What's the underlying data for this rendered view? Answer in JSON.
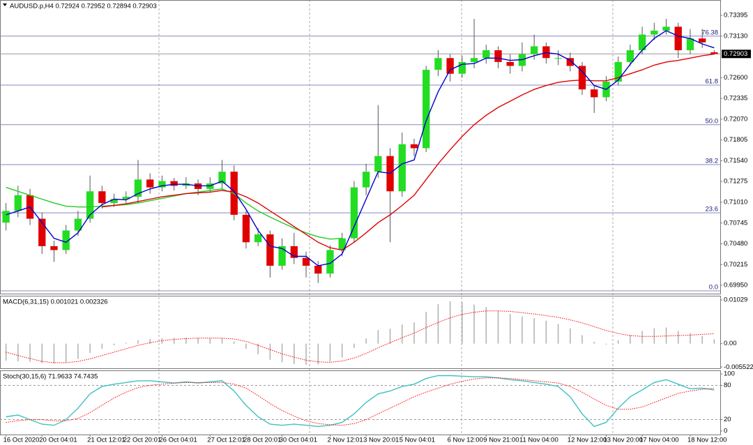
{
  "chart_data": [
    {
      "type": "candlestick",
      "title": "AUDUSD.p,H4  0.72924 0.72952 0.72894 0.72903",
      "categories": [
        "16 Oct 2020",
        null,
        null,
        "20 Oct 04:01",
        null,
        null,
        null,
        "21 Oct 12:01",
        null,
        null,
        "22 Oct 20:01",
        null,
        null,
        "26 Oct 04:01",
        null,
        null,
        null,
        "27 Oct 12:01",
        null,
        null,
        "28 Oct 20:01",
        null,
        null,
        "30 Oct 04:01",
        null,
        null,
        null,
        "2 Nov 12:01",
        null,
        null,
        "3 Nov 20:01",
        null,
        null,
        "5 Nov 04:01",
        null,
        null,
        null,
        "6 Nov 12:00",
        null,
        null,
        "9 Nov 21:00",
        null,
        null,
        "11 Nov 04:00",
        null,
        null,
        null,
        "12 Nov 12:00",
        null,
        null,
        "13 Nov 20:00",
        null,
        null,
        "17 Nov 04:00",
        null,
        null,
        null,
        "18 Nov 12:00",
        null,
        null
      ],
      "open": [
        0.7075,
        0.709,
        0.711,
        0.708,
        0.7045,
        0.704,
        0.7065,
        0.708,
        0.7115,
        0.71,
        0.7105,
        0.7108,
        0.713,
        0.712,
        0.7128,
        0.7122,
        0.7125,
        0.7118,
        0.7125,
        0.714,
        0.7085,
        0.705,
        0.706,
        0.702,
        0.7045,
        0.703,
        0.702,
        0.701,
        0.704,
        0.7055,
        0.712,
        0.714,
        0.716,
        0.7115,
        0.7175,
        0.717,
        0.727,
        0.7285,
        0.7265,
        0.728,
        0.7285,
        0.7295,
        0.728,
        0.7275,
        0.729,
        0.73,
        0.7285,
        0.7285,
        0.7275,
        0.7245,
        0.7235,
        0.7255,
        0.728,
        0.7295,
        0.7315,
        0.732,
        0.7325,
        0.7295,
        0.731,
        0.72924
      ],
      "high": [
        0.71,
        0.7122,
        0.7118,
        0.7088,
        0.7052,
        0.7072,
        0.709,
        0.7135,
        0.7122,
        0.7112,
        0.7115,
        0.7155,
        0.7138,
        0.7135,
        0.7132,
        0.7133,
        0.713,
        0.7133,
        0.7155,
        0.7148,
        0.709,
        0.7068,
        0.7065,
        0.7055,
        0.7062,
        0.7038,
        0.7026,
        0.7046,
        0.7062,
        0.7128,
        0.715,
        0.7225,
        0.717,
        0.719,
        0.7182,
        0.7275,
        0.7295,
        0.729,
        0.7288,
        0.7335,
        0.7302,
        0.73,
        0.729,
        0.7305,
        0.7315,
        0.7305,
        0.7295,
        0.7292,
        0.728,
        0.725,
        0.7262,
        0.7287,
        0.7302,
        0.7325,
        0.733,
        0.7335,
        0.733,
        0.7322,
        0.7322,
        0.72952
      ],
      "low": [
        0.7065,
        0.7082,
        0.7072,
        0.7035,
        0.7025,
        0.7035,
        0.7058,
        0.7075,
        0.7093,
        0.7095,
        0.71,
        0.71,
        0.7112,
        0.7115,
        0.7116,
        0.7118,
        0.711,
        0.7113,
        0.7118,
        0.7078,
        0.7042,
        0.7045,
        0.7005,
        0.7015,
        0.7022,
        0.7005,
        0.6998,
        0.7005,
        0.7032,
        0.705,
        0.711,
        0.7132,
        0.705,
        0.7108,
        0.716,
        0.7165,
        0.7262,
        0.7255,
        0.726,
        0.7272,
        0.7278,
        0.7272,
        0.7265,
        0.7268,
        0.7283,
        0.7278,
        0.7276,
        0.7268,
        0.7238,
        0.7215,
        0.723,
        0.725,
        0.7275,
        0.729,
        0.7308,
        0.7315,
        0.7285,
        0.729,
        0.7298,
        0.72894
      ],
      "close": [
        0.709,
        0.711,
        0.708,
        0.7045,
        0.704,
        0.7065,
        0.708,
        0.7115,
        0.71,
        0.7105,
        0.7108,
        0.713,
        0.712,
        0.7128,
        0.7122,
        0.7125,
        0.7118,
        0.7125,
        0.714,
        0.7085,
        0.705,
        0.706,
        0.702,
        0.7045,
        0.703,
        0.702,
        0.701,
        0.704,
        0.7055,
        0.712,
        0.714,
        0.716,
        0.7115,
        0.7175,
        0.717,
        0.727,
        0.7285,
        0.7265,
        0.728,
        0.7285,
        0.7295,
        0.728,
        0.7275,
        0.729,
        0.73,
        0.7285,
        0.7285,
        0.7275,
        0.7245,
        0.7235,
        0.7255,
        0.728,
        0.7295,
        0.7315,
        0.732,
        0.7325,
        0.7295,
        0.731,
        0.7305,
        0.72903
      ],
      "up_color": "#22dd22",
      "down_color": "#e00000",
      "wick_color": "#555555",
      "series": [
        {
          "color": "#22cc22",
          "style": "line",
          "values": [
            0.712,
            0.7115,
            0.711,
            0.7105,
            0.71,
            0.7096,
            0.7095,
            0.7095,
            0.7096,
            0.7097,
            0.7098,
            0.71,
            0.7103,
            0.7106,
            0.7109,
            0.7112,
            0.7114,
            0.7116,
            0.7118,
            0.7112,
            0.71,
            0.709,
            0.7082,
            0.7075,
            0.7068,
            0.7062,
            0.7057,
            0.7054,
            0.7055,
            null,
            null,
            null,
            null,
            null,
            null,
            null,
            null,
            null,
            null,
            null,
            null,
            null,
            null,
            null,
            null,
            null,
            null,
            null,
            null,
            null,
            null,
            null,
            null,
            null,
            null,
            null,
            null,
            null,
            null,
            null
          ]
        },
        {
          "color": "#e00000",
          "style": "line",
          "values": [
            null,
            null,
            null,
            null,
            null,
            null,
            null,
            null,
            0.7095,
            0.7097,
            0.7099,
            0.7102,
            0.7105,
            0.7108,
            0.711,
            0.7112,
            0.7113,
            0.7114,
            0.7116,
            0.7114,
            0.7108,
            0.71,
            0.709,
            0.708,
            0.707,
            0.706,
            0.705,
            0.7043,
            0.704,
            0.705,
            0.7062,
            0.7075,
            0.7085,
            0.7097,
            0.711,
            0.713,
            0.715,
            0.7168,
            0.7185,
            0.72,
            0.7212,
            0.7222,
            0.723,
            0.7238,
            0.7245,
            0.725,
            0.7254,
            0.7256,
            0.7257,
            0.7256,
            0.7256,
            0.726,
            0.7265,
            0.727,
            0.7276,
            0.728,
            0.7282,
            0.7285,
            0.7288,
            0.729
          ]
        },
        {
          "color": "#0000cc",
          "style": "line",
          "values": [
            0.7085,
            0.709,
            0.7095,
            0.7075,
            0.7055,
            0.705,
            0.7062,
            0.7085,
            0.7098,
            0.7105,
            0.7104,
            0.7112,
            0.7118,
            0.7122,
            0.7124,
            0.7124,
            0.7122,
            0.7122,
            0.7128,
            0.7115,
            0.7092,
            0.7065,
            0.7045,
            0.7042,
            0.7032,
            0.7032,
            0.702,
            0.7023,
            0.7035,
            0.707,
            0.7105,
            0.714,
            0.7138,
            0.715,
            0.7155,
            0.7205,
            0.7242,
            0.727,
            0.7277,
            0.7278,
            0.7285,
            0.7285,
            0.7282,
            0.7283,
            0.7288,
            0.7292,
            0.729,
            0.7282,
            0.7268,
            0.725,
            0.7245,
            0.7257,
            0.7277,
            0.7295,
            0.731,
            0.732,
            0.7313,
            0.731,
            0.7303,
            0.7298
          ]
        }
      ],
      "fib_color": "#8888bb",
      "fib_levels": [
        {
          "label": "76.38",
          "price": 0.7313
        },
        {
          "label": "61.8",
          "price": 0.72505
        },
        {
          "label": "50.0",
          "price": 0.72
        },
        {
          "label": "38.2",
          "price": 0.7149
        },
        {
          "label": "23.6",
          "price": 0.70875
        },
        {
          "label": "0.0",
          "price": 0.6988
        }
      ],
      "last_price": 0.72903,
      "ylim": [
        0.69844,
        0.73591
      ],
      "yticks": [
        0.73395,
        {
          "value": 0.7313,
          "label": "0.73130"
        },
        {
          "value": 0.726,
          "label": "0.72600"
        },
        0.72335,
        {
          "value": 0.7207,
          "label": "0.72070"
        },
        0.71805,
        {
          "value": 0.7154,
          "label": "0.71540"
        },
        0.71275,
        {
          "value": 0.7101,
          "label": "0.71010"
        },
        0.70745,
        {
          "value": 0.7048,
          "label": "0.70480"
        },
        0.70215,
        {
          "value": 0.6995,
          "label": "0.69950"
        }
      ]
    },
    {
      "type": "macd",
      "title": "MACD(6,31,15) 0.001021 0.002326",
      "series": [
        {
          "color": "#b0b0b0",
          "style": "histogram",
          "values": [
            -0.004,
            -0.0042,
            -0.0043,
            -0.0046,
            -0.0047,
            -0.0044,
            -0.0036,
            -0.0022,
            -0.0012,
            -0.0004,
            0.0002,
            0.0008,
            0.0011,
            0.0013,
            0.0014,
            0.0014,
            0.0013,
            0.0013,
            0.0014,
            0.0005,
            -0.0012,
            -0.0025,
            -0.0038,
            -0.0044,
            -0.0048,
            -0.005,
            -0.0049,
            -0.0042,
            -0.0033,
            -0.001,
            0.0012,
            0.0032,
            0.0035,
            0.0045,
            0.005,
            0.0075,
            0.0093,
            0.01,
            0.0098,
            0.0092,
            0.0086,
            0.0078,
            0.007,
            0.0064,
            0.006,
            0.0054,
            0.0046,
            0.0036,
            0.002,
            0.0004,
            -0.0002,
            0.0008,
            0.002,
            0.003,
            0.0036,
            0.0038,
            0.003,
            0.0025,
            0.0018,
            0.001021
          ]
        },
        {
          "color": "#ff0000",
          "style": "dotted",
          "values": [
            -0.002,
            -0.0028,
            -0.0035,
            -0.0042,
            -0.0045,
            -0.0045,
            -0.0042,
            -0.0036,
            -0.0028,
            -0.002,
            -0.0012,
            -0.0004,
            0.0002,
            0.0007,
            0.001,
            0.0012,
            0.0013,
            0.0013,
            0.0013,
            0.0011,
            0.0005,
            -0.0004,
            -0.0014,
            -0.0024,
            -0.0032,
            -0.0039,
            -0.0043,
            -0.0044,
            -0.0041,
            -0.0034,
            -0.0023,
            -0.001,
            0.0002,
            0.0014,
            0.0025,
            0.0038,
            0.005,
            0.0061,
            0.0069,
            0.0074,
            0.0077,
            0.0077,
            0.0076,
            0.0073,
            0.007,
            0.0066,
            0.0062,
            0.0056,
            0.0049,
            0.004,
            0.0031,
            0.0024,
            0.0019,
            0.0017,
            0.0017,
            0.0018,
            0.0019,
            0.002,
            0.0022,
            0.002326
          ]
        }
      ],
      "ylim": [
        -0.00581,
        0.01129
      ],
      "yticks": [
        0.01029,
        {
          "value": 0,
          "label": "0.00"
        },
        -0.005522
      ]
    },
    {
      "type": "stochastic",
      "title": "Stoch(30,15,6) 71.9633 74.7435",
      "series": [
        {
          "color": "#40c0c0",
          "style": "line",
          "values": [
            25,
            28,
            20,
            12,
            10,
            20,
            40,
            65,
            78,
            82,
            85,
            88,
            88,
            86,
            84,
            86,
            84,
            86,
            88,
            70,
            45,
            25,
            12,
            10,
            12,
            10,
            8,
            10,
            15,
            30,
            50,
            65,
            70,
            78,
            82,
            92,
            97,
            97,
            96,
            95,
            95,
            93,
            90,
            88,
            85,
            82,
            78,
            60,
            30,
            8,
            15,
            40,
            60,
            72,
            85,
            90,
            82,
            74,
            75,
            71.9633
          ]
        },
        {
          "color": "#ff0000",
          "style": "dotted",
          "values": [
            15,
            18,
            20,
            20,
            18,
            18,
            22,
            32,
            45,
            58,
            68,
            76,
            80,
            82,
            84,
            85,
            85,
            85,
            85,
            82,
            75,
            62,
            48,
            36,
            26,
            18,
            13,
            11,
            10,
            13,
            20,
            30,
            40,
            50,
            60,
            68,
            75,
            82,
            87,
            91,
            93,
            93,
            92,
            90,
            88,
            86,
            84,
            78,
            68,
            56,
            45,
            38,
            38,
            42,
            50,
            58,
            66,
            70,
            73,
            74.7435
          ]
        }
      ],
      "levels": [
        80,
        20
      ],
      "ylim": [
        -6.2,
        106.2
      ],
      "yticks": [
        100,
        80,
        20,
        0
      ]
    }
  ]
}
